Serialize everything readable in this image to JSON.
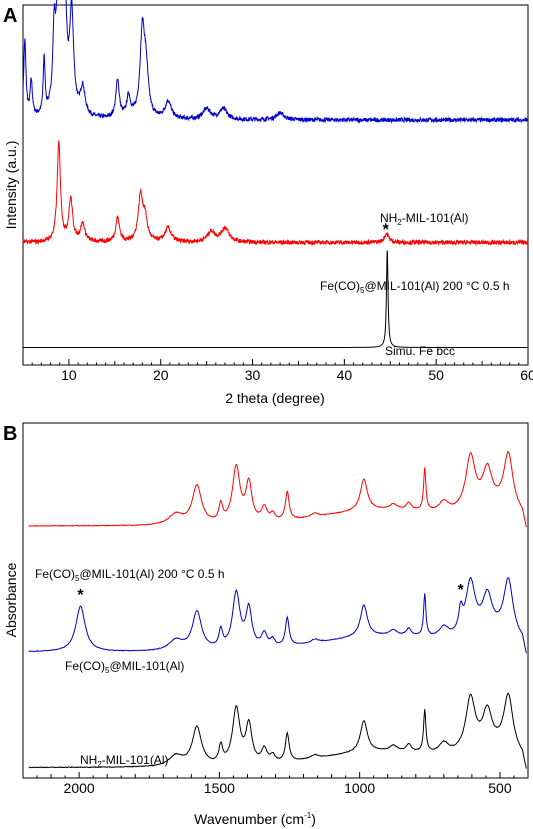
{
  "chart_data": [
    {
      "panel": "A",
      "type": "line",
      "title": "",
      "xlabel": "2 theta (degree)",
      "ylabel": "Intensity (a.u.)",
      "xlim": [
        5,
        60
      ],
      "xticks": [
        "10",
        "20",
        "30",
        "40",
        "50",
        "60"
      ],
      "yticks": "none",
      "grid": false,
      "series": [
        {
          "name": "NH",
          "name_sub": "2",
          "name_rest": "-MIL-101(Al)",
          "color": "#0000cc",
          "baseline": 0.7,
          "noise": 0.012,
          "peaks": [
            [
              5.2,
              0.22,
              0.15
            ],
            [
              5.9,
              0.1,
              0.15
            ],
            [
              7.3,
              0.16,
              0.12
            ],
            [
              8.4,
              0.2,
              0.18
            ],
            [
              9.05,
              1.0,
              0.22
            ],
            [
              9.5,
              0.3,
              0.25
            ],
            [
              10.3,
              0.28,
              0.25
            ],
            [
              11.5,
              0.08,
              0.3
            ],
            [
              15.3,
              0.11,
              0.22
            ],
            [
              16.5,
              0.06,
              0.25
            ],
            [
              18.0,
              0.24,
              0.3
            ],
            [
              18.4,
              0.12,
              0.3
            ],
            [
              20.8,
              0.05,
              0.4
            ],
            [
              25.0,
              0.03,
              0.5
            ],
            [
              26.8,
              0.03,
              0.5
            ],
            [
              33.0,
              0.02,
              0.5
            ]
          ]
        },
        {
          "name": "Fe(CO)",
          "name_sub": "5",
          "name_rest": "@MIL-101(Al) 200 °C 0.5 h",
          "color": "#ff0000",
          "baseline": 0.35,
          "noise": 0.012,
          "annotation": "*",
          "annotation_x": 44.5,
          "peaks": [
            [
              8.9,
              0.28,
              0.22
            ],
            [
              10.2,
              0.12,
              0.25
            ],
            [
              11.5,
              0.05,
              0.3
            ],
            [
              15.3,
              0.07,
              0.25
            ],
            [
              17.8,
              0.13,
              0.3
            ],
            [
              18.3,
              0.06,
              0.3
            ],
            [
              20.8,
              0.04,
              0.4
            ],
            [
              25.5,
              0.03,
              0.5
            ],
            [
              27.0,
              0.04,
              0.5
            ],
            [
              44.6,
              0.025,
              0.3
            ]
          ]
        },
        {
          "name": "Simu. Fe bcc",
          "color": "#000000",
          "baseline": 0.05,
          "noise": 0.0,
          "peaks": [
            [
              44.67,
              0.28,
              0.1
            ]
          ]
        }
      ]
    },
    {
      "panel": "B",
      "type": "line",
      "title": "",
      "xlabel": "Wavenumber (cm",
      "xlabel_sup": "-1",
      "xlabel_end": ")",
      "ylabel": "Absorbance",
      "xlim": [
        2200,
        400
      ],
      "xticks": [
        "2000",
        "1500",
        "1000",
        "500"
      ],
      "yticks": "none",
      "grid": false,
      "series": [
        {
          "name": "Fe(CO)",
          "name_sub": "5",
          "name_rest": "@MIL-101(Al) 200 °C 0.5 h",
          "color": "#ff0000",
          "baseline": 0.72,
          "noise": 0.002
        },
        {
          "name": "Fe(CO)",
          "name_sub": "5",
          "name_rest": "@MIL-101(Al)",
          "color": "#0000cc",
          "baseline": 0.36,
          "noise": 0.002,
          "annotations": [
            {
              "text": "*",
              "x": 1995
            },
            {
              "text": "*",
              "x": 640
            }
          ]
        },
        {
          "name": "NH",
          "name_sub": "2",
          "name_rest": "-MIL-101(Al)",
          "color": "#000000",
          "baseline": 0.03,
          "noise": 0.002
        }
      ]
    }
  ]
}
